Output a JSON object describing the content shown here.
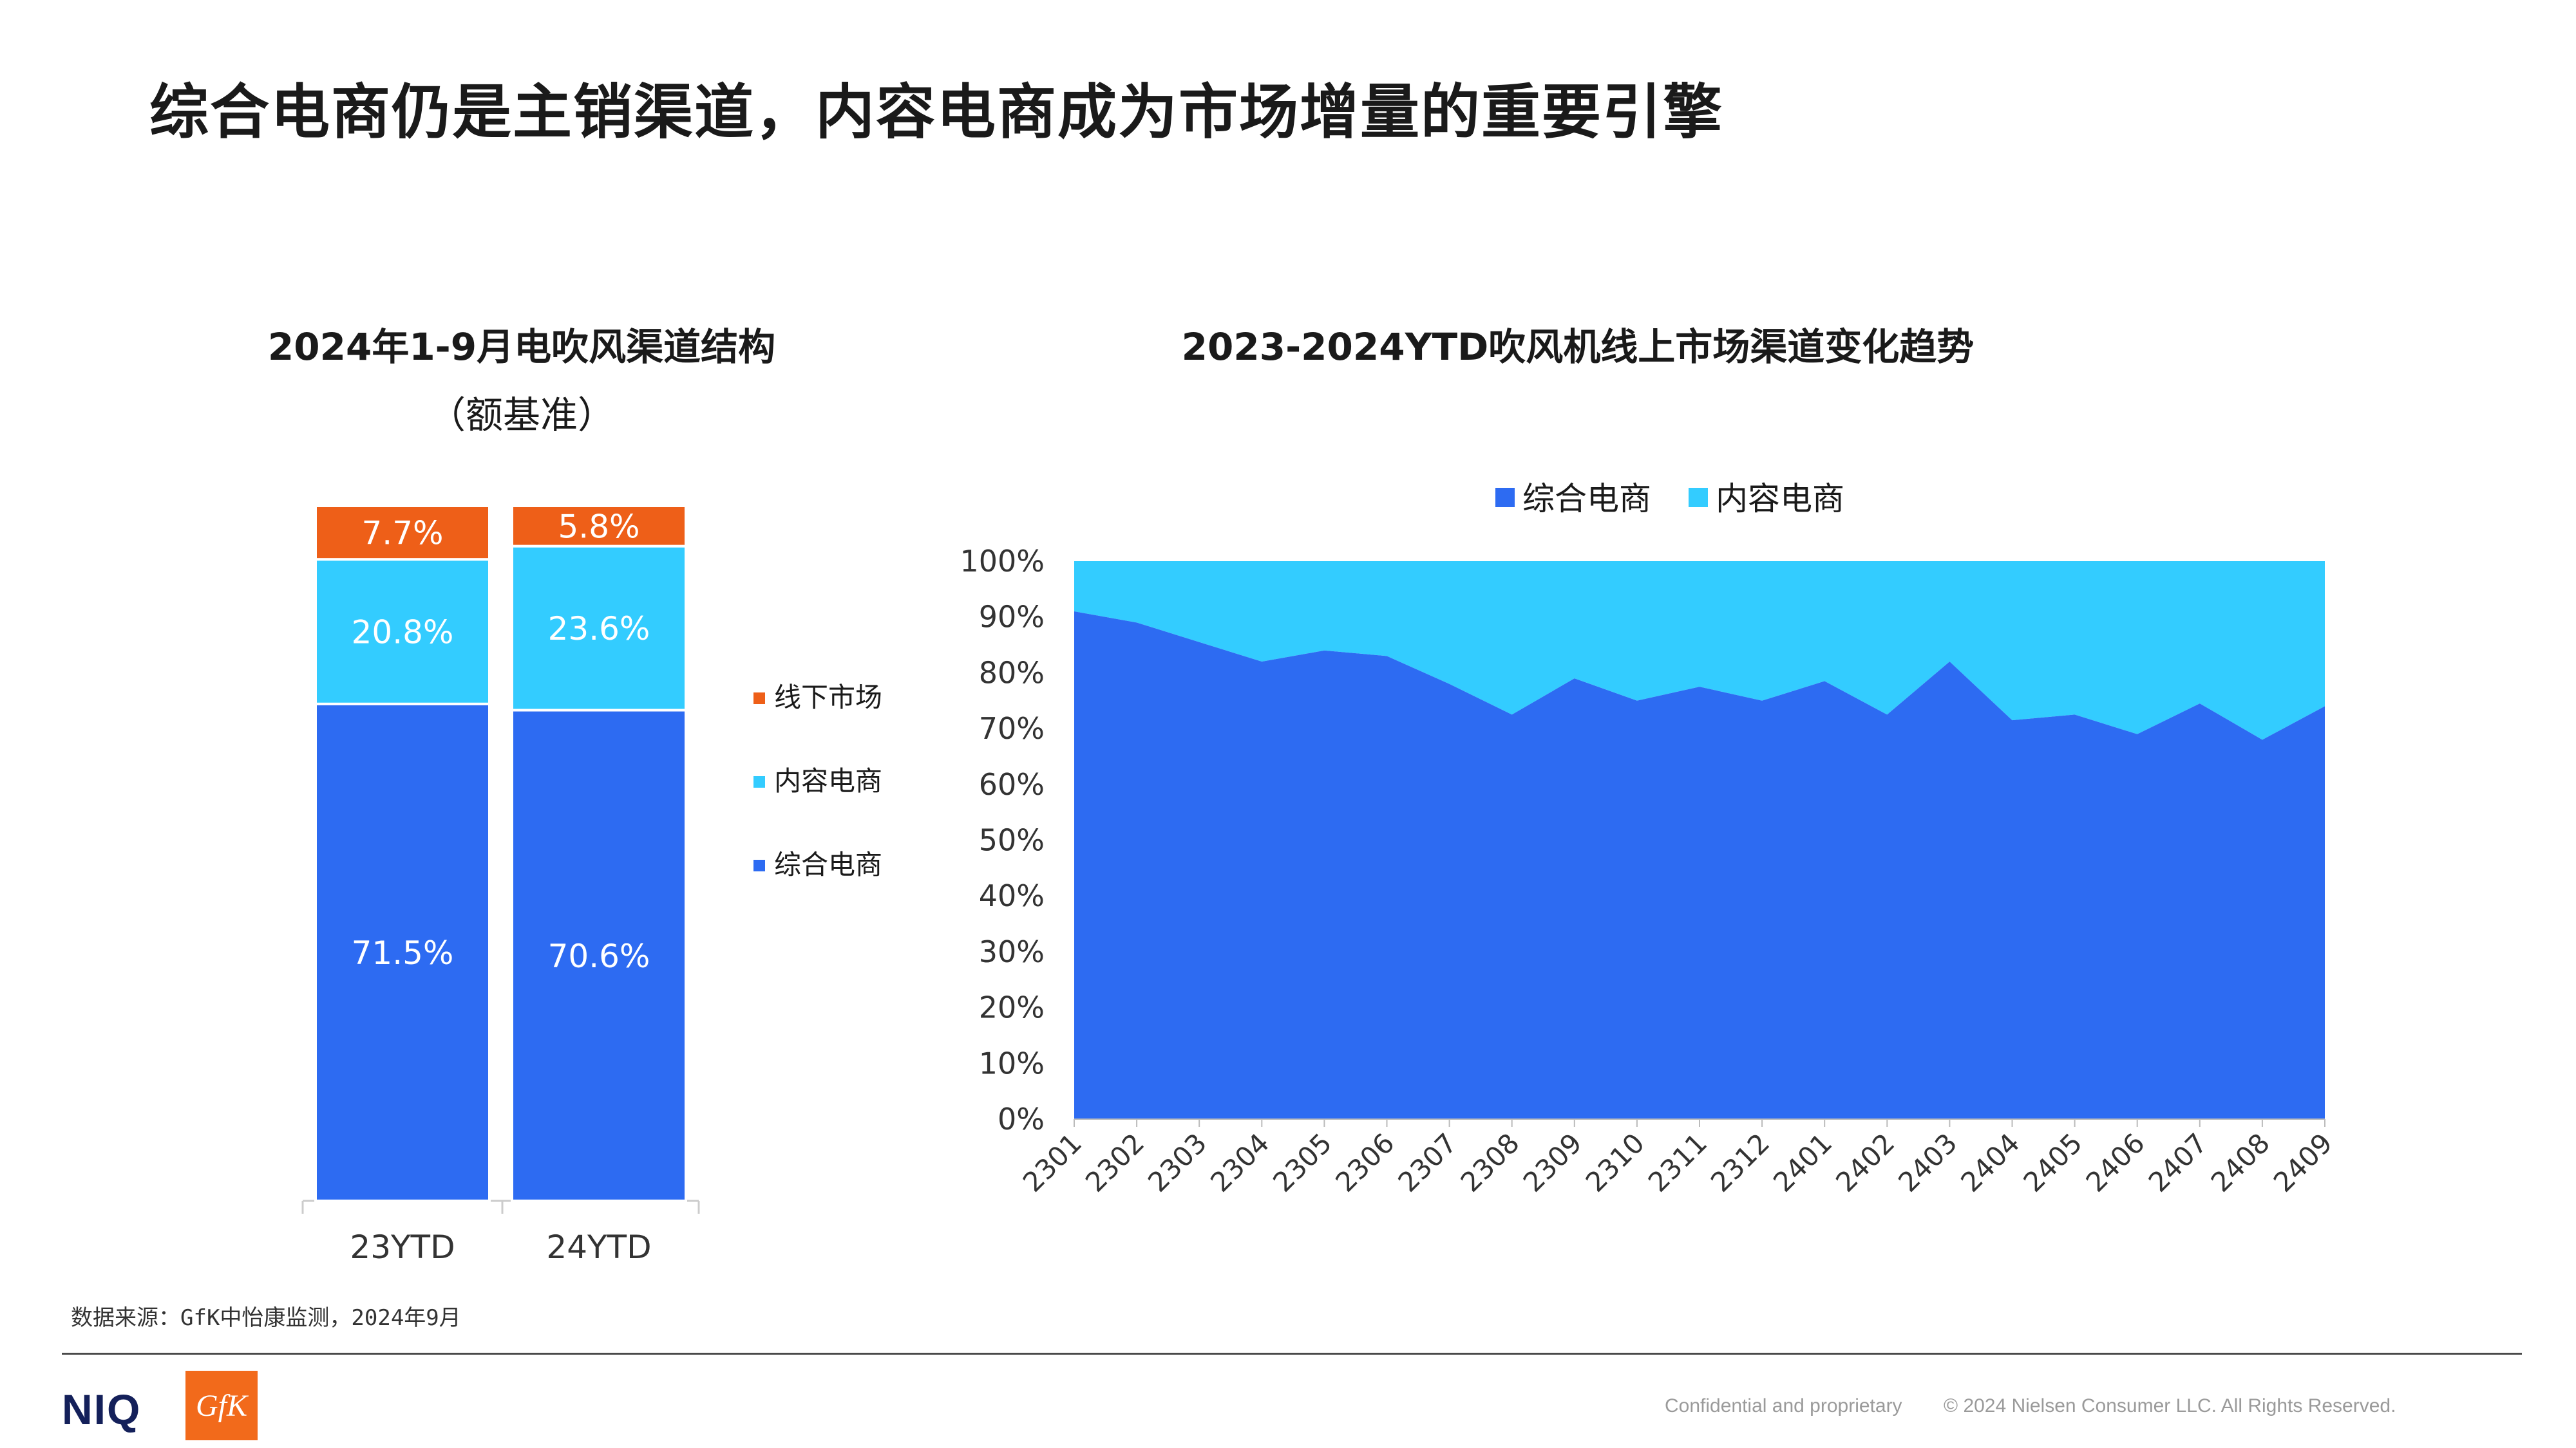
{
  "title": "综合电商仍是主销渠道，内容电商成为市场增量的重要引擎",
  "colors": {
    "offline": "#EE5F18",
    "content": "#33CCFF",
    "comprehensive": "#2D6BF2",
    "text": "#1a1a1a",
    "axis_text": "#333333"
  },
  "chart_data": [
    {
      "type": "bar",
      "stacked": true,
      "title": "2024年1-9月电吹风渠道结构",
      "subtitle": "（额基准）",
      "categories": [
        "23YTD",
        "24YTD"
      ],
      "series": [
        {
          "name": "综合电商",
          "values": [
            71.5,
            70.6
          ],
          "labels": [
            "71.5%",
            "70.6%"
          ]
        },
        {
          "name": "内容电商",
          "values": [
            20.8,
            23.6
          ],
          "labels": [
            "20.8%",
            "23.6%"
          ]
        },
        {
          "name": "线下市场",
          "values": [
            7.7,
            5.8
          ],
          "labels": [
            "7.7%",
            "5.8%"
          ]
        }
      ],
      "legend": [
        "线下市场",
        "内容电商",
        "综合电商"
      ],
      "legend_position": "right",
      "ylim": [
        0,
        100
      ]
    },
    {
      "type": "area",
      "stacked": true,
      "percent": true,
      "title": "2023-2024YTD吹风机线上市场渠道变化趋势",
      "categories": [
        "2301",
        "2302",
        "2303",
        "2304",
        "2305",
        "2306",
        "2307",
        "2308",
        "2309",
        "2310",
        "2311",
        "2312",
        "2401",
        "2402",
        "2403",
        "2404",
        "2405",
        "2406",
        "2407",
        "2408",
        "2409"
      ],
      "series": [
        {
          "name": "综合电商",
          "values": [
            91,
            89,
            85.5,
            82,
            84,
            83,
            78,
            72.5,
            79,
            75,
            77.5,
            75,
            78.5,
            72.5,
            82,
            71.5,
            72.5,
            69,
            74.5,
            68,
            74
          ]
        },
        {
          "name": "内容电商",
          "values": [
            9,
            11,
            14.5,
            18,
            16,
            17,
            22,
            27.5,
            21,
            25,
            22.5,
            25,
            21.5,
            27.5,
            18,
            28.5,
            27.5,
            31,
            25.5,
            32,
            26
          ]
        }
      ],
      "yticks": [
        "0%",
        "10%",
        "20%",
        "30%",
        "40%",
        "50%",
        "60%",
        "70%",
        "80%",
        "90%",
        "100%"
      ],
      "ylim": [
        0,
        100
      ],
      "legend": [
        "综合电商",
        "内容电商"
      ],
      "legend_position": "top"
    }
  ],
  "source": "数据来源：GfK中怡康监测，2024年9月",
  "footer": {
    "logo_niq": "NIQ",
    "logo_gfk": "GfK",
    "confidential": "Confidential and proprietary",
    "copyright": "© 2024 Nielsen Consumer LLC. All Rights Reserved."
  }
}
